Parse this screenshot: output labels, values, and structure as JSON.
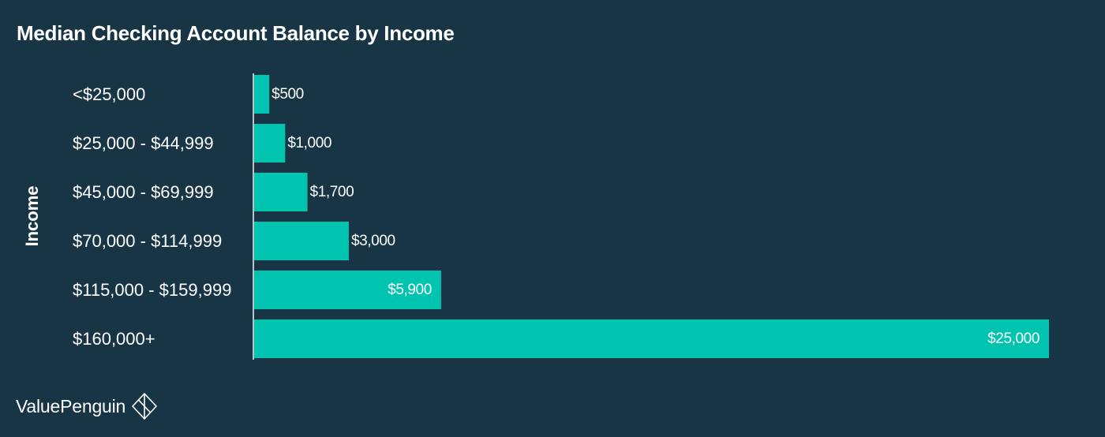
{
  "colors": {
    "background": "#173544",
    "bar": "#00c4b0",
    "axis_line": "#b7c4ca",
    "text": "#ffffff"
  },
  "brand": {
    "name": "ValuePenguin",
    "icon": "penguin-diamond-logo-icon"
  },
  "chart_data": {
    "type": "bar",
    "orientation": "horizontal",
    "title": "Median Checking Account Balance by Income",
    "xlabel": "",
    "ylabel": "Income",
    "categories": [
      "<$25,000",
      "$25,000 - $44,999",
      "$45,000 - $69,999",
      "$70,000 - $114,999",
      "$115,000 - $159,999",
      "$160,000+"
    ],
    "values": [
      500,
      1000,
      1700,
      3000,
      5900,
      25000
    ],
    "value_labels": [
      "$500",
      "$1,000",
      "$1,700",
      "$3,000",
      "$5,900",
      "$25,000"
    ],
    "xlim": [
      0,
      25000
    ],
    "grid": false,
    "legend": "none"
  }
}
